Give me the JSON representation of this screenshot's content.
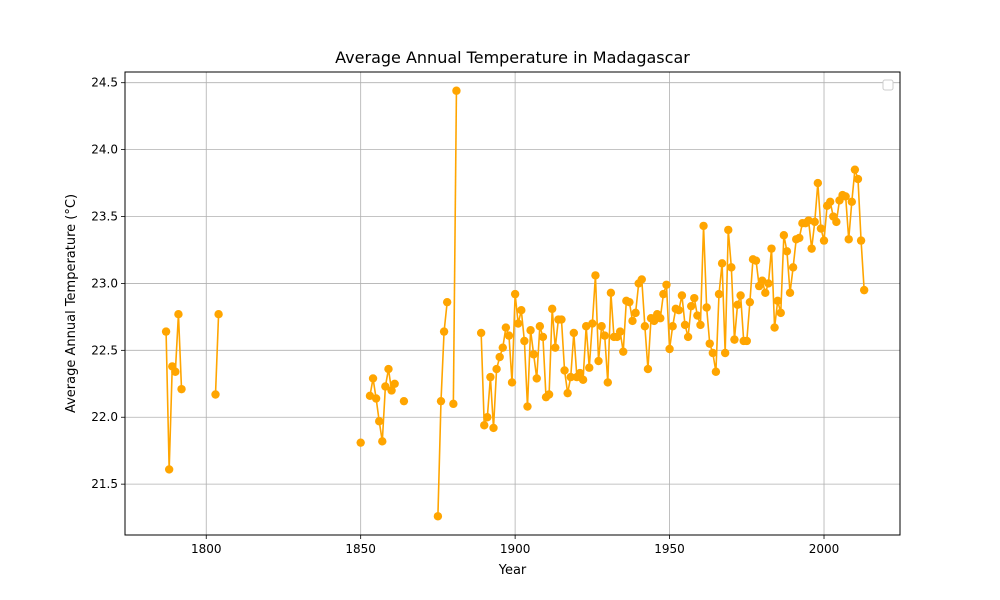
{
  "chart_data": {
    "type": "line",
    "title": "Average Annual Temperature in Madagascar",
    "xlabel": "Year",
    "ylabel": "Average Annual Temperature (°C)",
    "xlim": [
      1773.7,
      2024.6
    ],
    "ylim": [
      21.12,
      24.58
    ],
    "xticks": [
      1800,
      1850,
      1900,
      1950,
      2000
    ],
    "yticks": [
      21.5,
      22.0,
      22.5,
      23.0,
      23.5,
      24.0,
      24.5
    ],
    "grid": true,
    "legend": "top-right",
    "color": "#ffa500",
    "segments": [
      {
        "x": [
          1787,
          1788,
          1789,
          1790,
          1791,
          1792
        ],
        "y": [
          22.64,
          21.61,
          22.38,
          22.34,
          22.77,
          22.21
        ]
      },
      {
        "x": [
          1803,
          1804
        ],
        "y": [
          22.17,
          22.77
        ]
      },
      {
        "x": [
          1850
        ],
        "y": [
          21.81
        ]
      },
      {
        "x": [
          1853,
          1854,
          1855,
          1856,
          1857,
          1858,
          1859,
          1860,
          1861
        ],
        "y": [
          22.16,
          22.29,
          22.14,
          21.97,
          21.82,
          22.23,
          22.36,
          22.2,
          22.25
        ]
      },
      {
        "x": [
          1864
        ],
        "y": [
          22.12
        ]
      },
      {
        "x": [
          1875,
          1876,
          1877,
          1878
        ],
        "y": [
          21.26,
          22.12,
          22.64,
          22.86
        ]
      },
      {
        "x": [
          1880,
          1881
        ],
        "y": [
          22.1,
          24.44
        ]
      },
      {
        "x": [
          1889,
          1890,
          1891,
          1892,
          1893,
          1894,
          1895,
          1896,
          1897,
          1898,
          1899,
          1900,
          1901,
          1902,
          1903,
          1904,
          1905,
          1906,
          1907,
          1908,
          1909,
          1910,
          1911,
          1912,
          1913,
          1914,
          1915,
          1916,
          1917,
          1918,
          1919,
          1920,
          1921,
          1922,
          1923,
          1924,
          1925,
          1926,
          1927,
          1928,
          1929,
          1930,
          1931,
          1932,
          1933,
          1934,
          1935,
          1936,
          1937,
          1938,
          1939,
          1940,
          1941,
          1942,
          1943,
          1944,
          1945,
          1946,
          1947,
          1948,
          1949,
          1950,
          1951,
          1952,
          1953,
          1954,
          1955,
          1956,
          1957,
          1958,
          1959,
          1960,
          1961,
          1962,
          1963,
          1964,
          1965,
          1966,
          1967,
          1968,
          1969,
          1970,
          1971,
          1972,
          1973,
          1974,
          1975,
          1976,
          1977,
          1978,
          1979,
          1980,
          1981,
          1982,
          1983,
          1984,
          1985,
          1986,
          1987,
          1988,
          1989,
          1990,
          1991,
          1992,
          1993,
          1994,
          1995,
          1996,
          1997,
          1998,
          1999,
          2000,
          2001,
          2002,
          2003,
          2004,
          2005,
          2006,
          2007,
          2008,
          2009,
          2010,
          2011,
          2012,
          2013
        ],
        "y": [
          22.63,
          21.94,
          22.0,
          22.3,
          21.92,
          22.36,
          22.45,
          22.52,
          22.67,
          22.61,
          22.26,
          22.92,
          22.7,
          22.8,
          22.57,
          22.08,
          22.65,
          22.47,
          22.29,
          22.68,
          22.6,
          22.15,
          22.17,
          22.81,
          22.52,
          22.73,
          22.73,
          22.35,
          22.18,
          22.3,
          22.63,
          22.3,
          22.33,
          22.28,
          22.68,
          22.37,
          22.7,
          23.06,
          22.42,
          22.68,
          22.61,
          22.26,
          22.93,
          22.6,
          22.6,
          22.64,
          22.49,
          22.87,
          22.86,
          22.72,
          22.78,
          23.0,
          23.03,
          22.68,
          22.36,
          22.74,
          22.72,
          22.77,
          22.74,
          22.92,
          22.99,
          22.51,
          22.68,
          22.81,
          22.8,
          22.91,
          22.69,
          22.6,
          22.83,
          22.89,
          22.76,
          22.69,
          23.43,
          22.82,
          22.55,
          22.48,
          22.34,
          22.92,
          23.15,
          22.48,
          23.4,
          23.12,
          22.58,
          22.84,
          22.91,
          22.57,
          22.57,
          22.86,
          23.18,
          23.17,
          22.98,
          23.02,
          22.93,
          23.0,
          23.26,
          22.67,
          22.87,
          22.78,
          23.36,
          23.24,
          22.93,
          23.12,
          23.33,
          23.34,
          23.45,
          23.45,
          23.47,
          23.26,
          23.46,
          23.75,
          23.41,
          23.32,
          23.58,
          23.61,
          23.5,
          23.46,
          23.62,
          23.66,
          23.65,
          23.33,
          23.61,
          23.85,
          23.78,
          23.32,
          22.95
        ]
      }
    ]
  }
}
